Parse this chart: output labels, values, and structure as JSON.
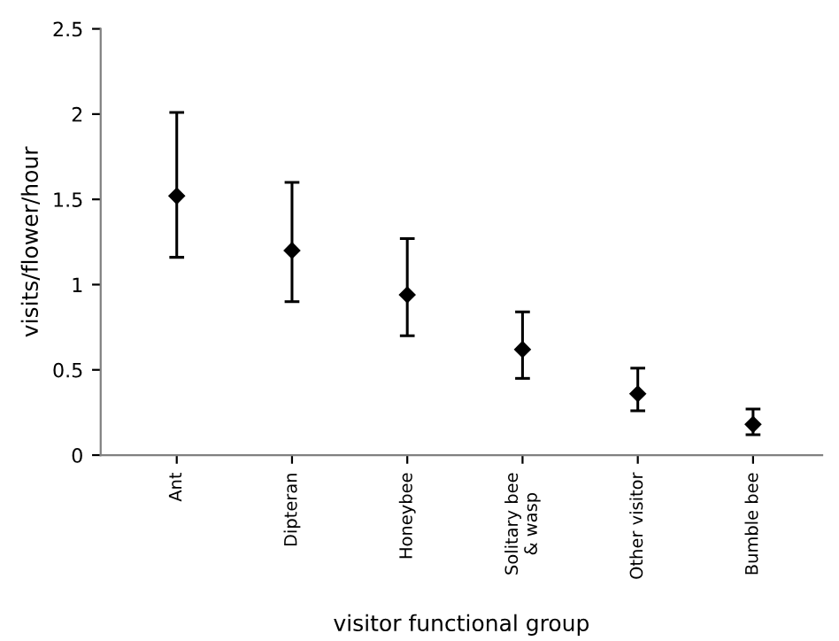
{
  "chart_data": {
    "type": "scatter",
    "xlabel": "visitor functional group",
    "ylabel": "visits/flower/hour",
    "categories": [
      "Ant",
      "Dipteran",
      "Honeybee",
      "Solitary bee\n& wasp",
      "Other visitor",
      "Bumble bee"
    ],
    "values": [
      1.52,
      1.2,
      0.94,
      0.62,
      0.36,
      0.18
    ],
    "errors": [
      [
        1.16,
        2.01
      ],
      [
        0.9,
        1.6
      ],
      [
        0.7,
        1.27
      ],
      [
        0.45,
        0.84
      ],
      [
        0.26,
        0.51
      ],
      [
        0.12,
        0.27
      ]
    ],
    "color": "#000000",
    "marker": "diamond",
    "ylim": [
      0,
      2.5
    ],
    "yticks": [
      0,
      0.5,
      1,
      1.5,
      2,
      2.5
    ],
    "grid": false,
    "legend": false
  }
}
